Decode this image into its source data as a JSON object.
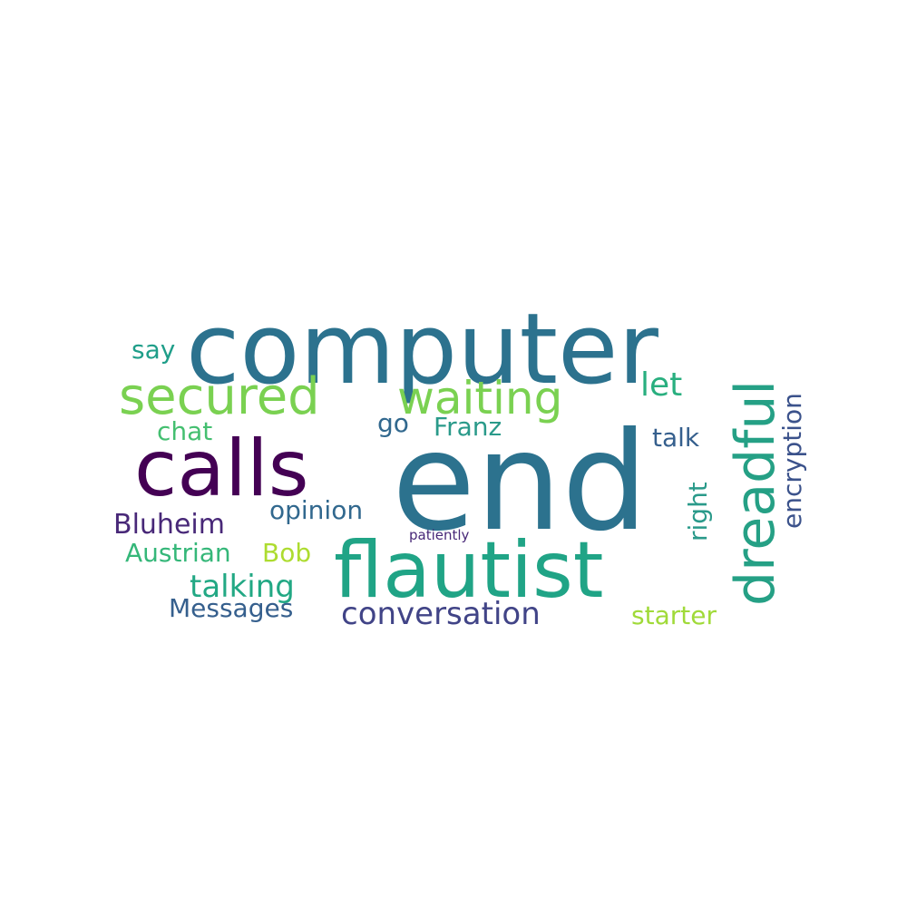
{
  "words": [
    {
      "text": "computer",
      "color": "#2c728e"
    },
    {
      "text": "end",
      "color": "#2c728e"
    },
    {
      "text": "flautist",
      "color": "#20a486"
    },
    {
      "text": "calls",
      "color": "#440154"
    },
    {
      "text": "secured",
      "color": "#7ad151"
    },
    {
      "text": "waiting",
      "color": "#7ad151"
    },
    {
      "text": "dreadful",
      "color": "#25a085"
    },
    {
      "text": "conversation",
      "color": "#414487"
    },
    {
      "text": "talking",
      "color": "#22a884"
    },
    {
      "text": "Bluheim",
      "color": "#482878"
    },
    {
      "text": "opinion",
      "color": "#31688e"
    },
    {
      "text": "Messages",
      "color": "#355f8d"
    },
    {
      "text": "Austrian",
      "color": "#35b779"
    },
    {
      "text": "Bob",
      "color": "#addc30"
    },
    {
      "text": "encryption",
      "color": "#3b528b"
    },
    {
      "text": "let",
      "color": "#29af7f"
    },
    {
      "text": "talk",
      "color": "#355f8d"
    },
    {
      "text": "right",
      "color": "#2a9a8a"
    },
    {
      "text": "starter",
      "color": "#a0da39"
    },
    {
      "text": "Franz",
      "color": "#2a9a8a"
    },
    {
      "text": "chat",
      "color": "#44bf70"
    },
    {
      "text": "say",
      "color": "#1f9e89"
    },
    {
      "text": "go",
      "color": "#31688e"
    },
    {
      "text": "patiently",
      "color": "#482878"
    }
  ]
}
